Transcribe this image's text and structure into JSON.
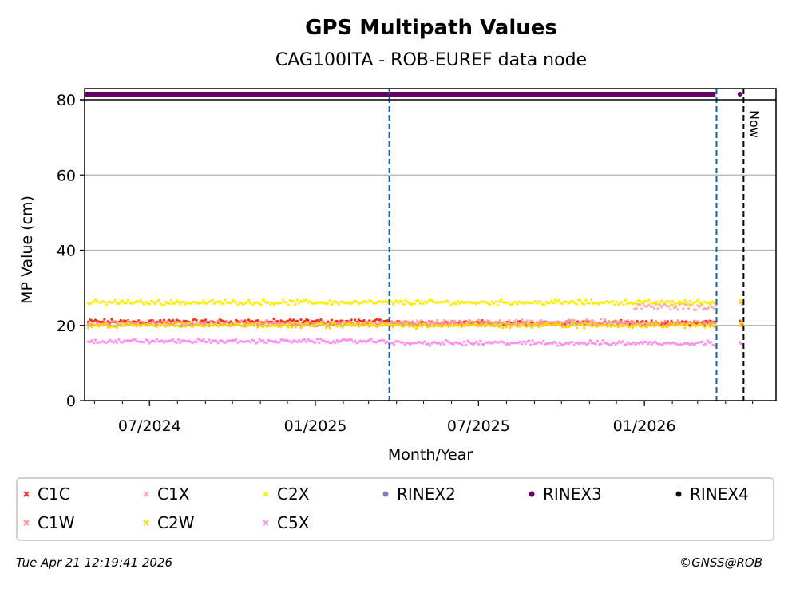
{
  "chart_data": {
    "type": "scatter",
    "title": "GPS Multipath Values",
    "subtitle": "CAG100ITA - ROB-EUREF data node",
    "xlabel": "Month/Year",
    "ylabel": "MP Value (cm)",
    "xlim": [
      "2024-04-20",
      "2026-05-27"
    ],
    "ylim": [
      0,
      80
    ],
    "yticks": [
      0,
      20,
      40,
      60,
      80
    ],
    "xticks": [
      {
        "date": "2024-07-01",
        "label": "07/2024"
      },
      {
        "date": "2025-01-01",
        "label": "01/2025"
      },
      {
        "date": "2025-07-01",
        "label": "07/2025"
      },
      {
        "date": "2026-01-01",
        "label": "01/2026"
      }
    ],
    "grid": "y",
    "series": [
      {
        "name": "C1C",
        "color": "#ff2a1a",
        "marker": "x",
        "segments": [
          {
            "from": "2024-04-24",
            "to": "2025-03-24",
            "mean": 21.0,
            "spread": 0.5
          },
          {
            "from": "2025-03-25",
            "to": "2026-03-21",
            "mean": 20.6,
            "spread": 0.5
          }
        ]
      },
      {
        "name": "C1X",
        "color": "#ffaaaa",
        "marker": "x",
        "segments": [
          {
            "from": "2025-03-25",
            "to": "2025-12-20",
            "mean": 20.8,
            "spread": 0.6
          },
          {
            "from": "2025-12-21",
            "to": "2026-03-21",
            "mean": 25.0,
            "spread": 0.8
          }
        ]
      },
      {
        "name": "C2X",
        "color": "#ffee00",
        "marker": "x",
        "segments": [
          {
            "from": "2024-04-24",
            "to": "2026-03-21",
            "mean": 26.1,
            "spread": 0.5
          }
        ]
      },
      {
        "name": "C1W",
        "color": "#ff9090",
        "marker": "x",
        "segments": [
          {
            "from": "2024-04-24",
            "to": "2026-03-21",
            "mean": 20.5,
            "spread": 0.5
          }
        ]
      },
      {
        "name": "C2W",
        "color": "#ffd700",
        "marker": "x",
        "segments": [
          {
            "from": "2024-04-24",
            "to": "2026-03-21",
            "mean": 20.0,
            "spread": 0.5
          }
        ]
      },
      {
        "name": "C5X",
        "color": "#ff90f0",
        "marker": "x",
        "segments": [
          {
            "from": "2024-04-24",
            "to": "2025-03-24",
            "mean": 15.8,
            "spread": 0.4
          },
          {
            "from": "2025-03-25",
            "to": "2026-03-21",
            "mean": 15.3,
            "spread": 0.5
          }
        ]
      }
    ],
    "late_points": {
      "date": "2026-04-17",
      "values": {
        "C1C": 20.8,
        "C1X": 25.8,
        "C2X": 26.4,
        "C2W": 20.2,
        "C5X": 15.4
      }
    },
    "rinex": [
      {
        "name": "RINEX2",
        "color": "#8080c0",
        "marker": "o",
        "ranges": []
      },
      {
        "name": "RINEX3",
        "color": "#660066",
        "marker": "o",
        "ranges": [
          {
            "from": "2024-04-20",
            "to": "2026-03-21"
          },
          {
            "from": "2026-04-16",
            "to": "2026-04-18"
          }
        ]
      },
      {
        "name": "RINEX4",
        "color": "#1a0022",
        "marker": "o",
        "ranges": []
      }
    ],
    "vlines": [
      {
        "date": "2025-03-24",
        "color": "#1060c0",
        "style": "dashed"
      },
      {
        "date": "2026-03-22",
        "color": "#1060c0",
        "style": "dashed"
      },
      {
        "date": "2026-04-21",
        "color": "#000000",
        "style": "dashed",
        "label": "Now"
      }
    ],
    "legend_placement": "bottom"
  },
  "legend": {
    "items": [
      {
        "label": "C1C",
        "color": "#ff2a1a",
        "marker": "x"
      },
      {
        "label": "C1X",
        "color": "#ffaaaa",
        "marker": "x"
      },
      {
        "label": "C2X",
        "color": "#ffee00",
        "marker": "x"
      },
      {
        "label": "RINEX2",
        "color": "#8080c0",
        "marker": "o"
      },
      {
        "label": "RINEX3",
        "color": "#660066",
        "marker": "o"
      },
      {
        "label": "RINEX4",
        "color": "#1a0022",
        "marker": "o"
      },
      {
        "label": "C1W",
        "color": "#ff9090",
        "marker": "x"
      },
      {
        "label": "C2W",
        "color": "#ffd700",
        "marker": "x"
      },
      {
        "label": "C5X",
        "color": "#ff90f0",
        "marker": "x"
      }
    ]
  },
  "footer": {
    "timestamp": "Tue Apr 21 12:19:41 2026",
    "copyright": "©GNSS@ROB"
  }
}
